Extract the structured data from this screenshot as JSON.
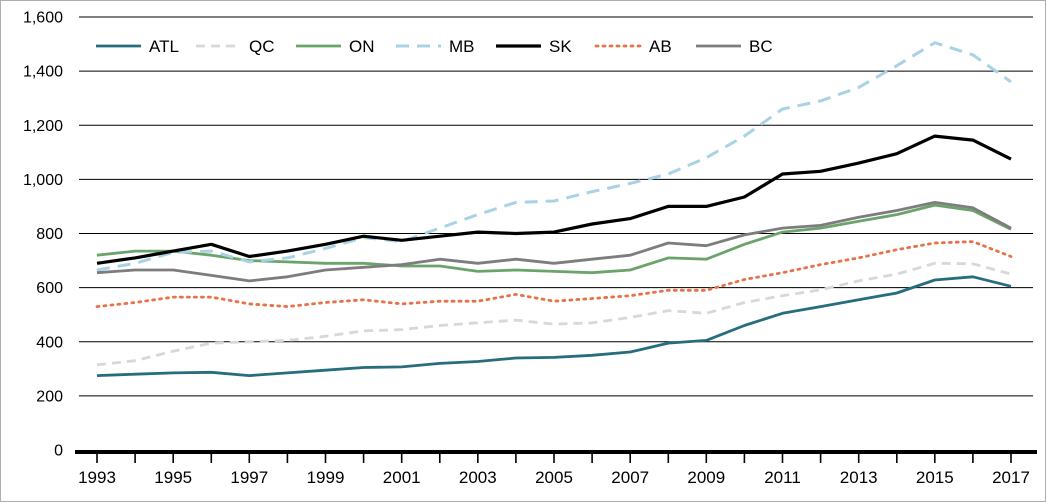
{
  "chart_data": {
    "type": "line",
    "x": [
      1993,
      1994,
      1995,
      1996,
      1997,
      1998,
      1999,
      2000,
      2001,
      2002,
      2003,
      2004,
      2005,
      2006,
      2007,
      2008,
      2009,
      2010,
      2011,
      2012,
      2013,
      2014,
      2015,
      2016,
      2017
    ],
    "x_label_years": [
      1993,
      1995,
      1997,
      1999,
      2001,
      2003,
      2005,
      2007,
      2009,
      2011,
      2013,
      2015,
      2017
    ],
    "ylim": [
      0,
      1600
    ],
    "y_ticks": [
      0,
      200,
      400,
      600,
      800,
      1000,
      1200,
      1400,
      1600
    ],
    "y_tick_labels": [
      "0",
      "200",
      "400",
      "600",
      "800",
      "1,000",
      "1,200",
      "1,400",
      "1,600"
    ],
    "grid": true,
    "legend_position": "top-left-inside",
    "series": [
      {
        "name": "ATL",
        "color": "#266d7e",
        "dash": "solid",
        "width": 2.8,
        "values": [
          275,
          280,
          285,
          287,
          275,
          285,
          295,
          305,
          307,
          320,
          327,
          340,
          342,
          350,
          362,
          395,
          405,
          460,
          505,
          530,
          555,
          580,
          628,
          640,
          605
        ]
      },
      {
        "name": "QC",
        "color": "#d8d8d8",
        "dash": "dashed",
        "width": 2.8,
        "values": [
          315,
          330,
          365,
          395,
          400,
          405,
          420,
          440,
          445,
          460,
          470,
          480,
          465,
          470,
          490,
          515,
          505,
          545,
          570,
          592,
          625,
          650,
          690,
          688,
          650
        ]
      },
      {
        "name": "ON",
        "color": "#6ba46b",
        "dash": "solid",
        "width": 2.8,
        "values": [
          720,
          735,
          735,
          720,
          700,
          695,
          690,
          690,
          680,
          680,
          660,
          665,
          660,
          655,
          665,
          710,
          705,
          760,
          805,
          820,
          845,
          870,
          905,
          885,
          815
        ]
      },
      {
        "name": "MB",
        "color": "#a9d3e5",
        "dash": "long-dashed",
        "width": 3,
        "values": [
          665,
          690,
          730,
          735,
          695,
          710,
          745,
          785,
          770,
          820,
          870,
          915,
          920,
          955,
          985,
          1020,
          1080,
          1160,
          1260,
          1290,
          1340,
          1420,
          1505,
          1460,
          1360
        ]
      },
      {
        "name": "SK",
        "color": "#000000",
        "dash": "solid",
        "width": 3.2,
        "values": [
          690,
          710,
          735,
          760,
          715,
          735,
          760,
          790,
          775,
          790,
          805,
          800,
          805,
          835,
          855,
          900,
          900,
          935,
          1020,
          1030,
          1060,
          1095,
          1160,
          1145,
          1075
        ]
      },
      {
        "name": "AB",
        "color": "#e8714a",
        "dash": "dotted",
        "width": 2.8,
        "values": [
          530,
          545,
          565,
          565,
          540,
          530,
          545,
          555,
          540,
          550,
          550,
          575,
          550,
          560,
          570,
          590,
          590,
          630,
          655,
          685,
          710,
          740,
          765,
          770,
          715
        ]
      },
      {
        "name": "BC",
        "color": "#7d7d7d",
        "dash": "solid",
        "width": 2.8,
        "values": [
          655,
          665,
          665,
          645,
          625,
          640,
          665,
          675,
          685,
          705,
          690,
          705,
          690,
          705,
          720,
          765,
          755,
          795,
          820,
          830,
          860,
          885,
          915,
          895,
          820
        ]
      }
    ]
  }
}
